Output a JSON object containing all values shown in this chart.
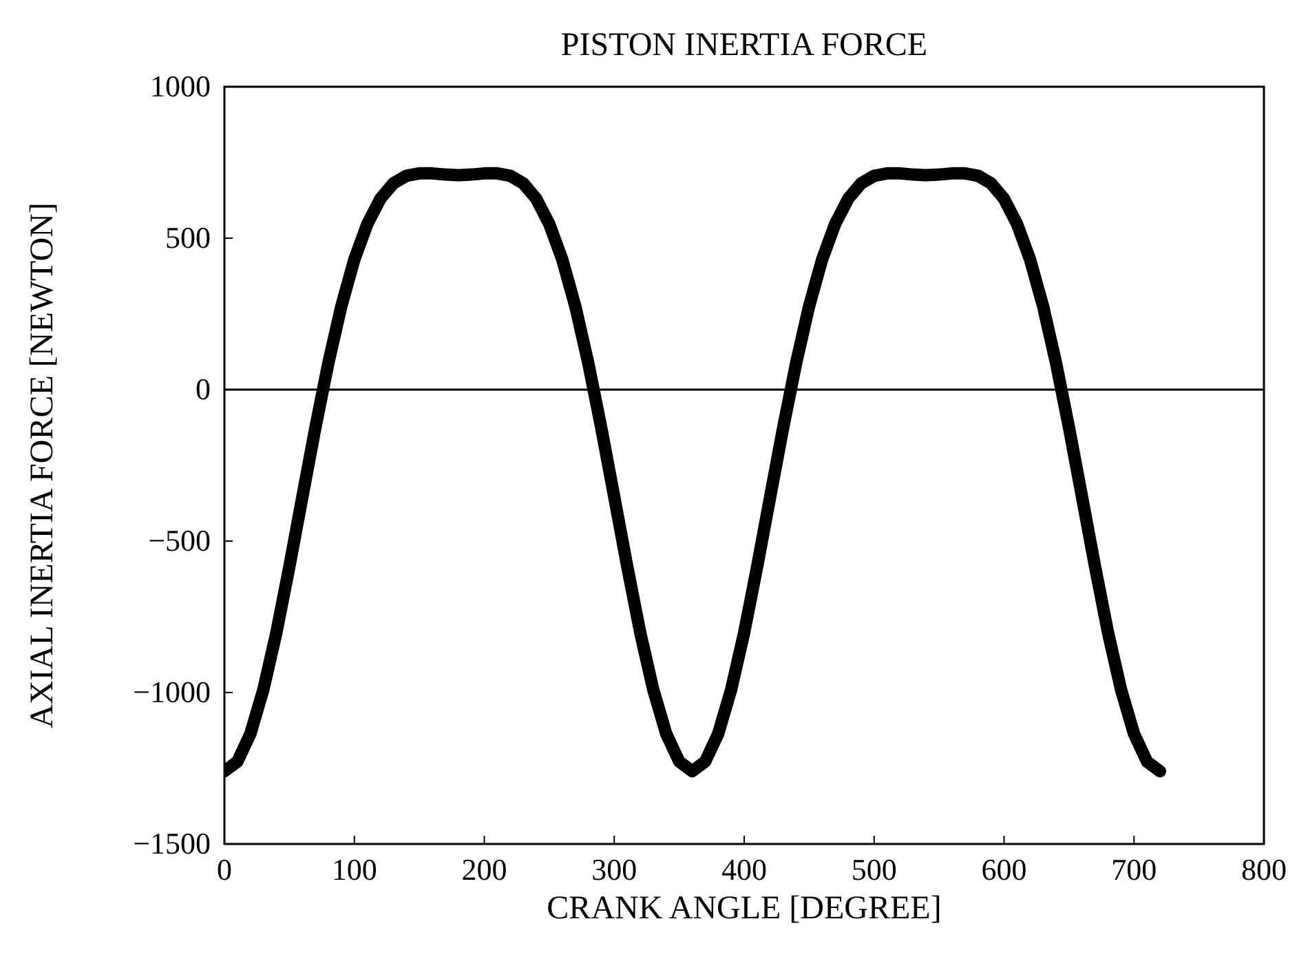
{
  "chart_data": {
    "type": "line",
    "title": "PISTON INERTIA FORCE",
    "xlabel": "CRANK ANGLE [DEGREE]",
    "ylabel": "AXIAL INERTIA FORCE [NEWTON]",
    "x": [
      0,
      10,
      20,
      30,
      40,
      50,
      60,
      70,
      80,
      90,
      100,
      110,
      120,
      130,
      140,
      150,
      160,
      170,
      180,
      190,
      200,
      210,
      220,
      230,
      240,
      250,
      260,
      270,
      280,
      290,
      300,
      310,
      320,
      330,
      340,
      350,
      360,
      370,
      380,
      390,
      400,
      410,
      420,
      430,
      440,
      450,
      460,
      470,
      480,
      490,
      500,
      510,
      520,
      530,
      540,
      550,
      560,
      570,
      580,
      590,
      600,
      610,
      620,
      630,
      640,
      650,
      660,
      670,
      680,
      690,
      700,
      710,
      720
    ],
    "series": [
      {
        "color": "#000000",
        "values": [
          -1260,
          -1228,
          -1136,
          -990,
          -802,
          -584,
          -354,
          -126,
          88,
          276,
          430,
          547,
          630,
          681,
          706,
          714,
          714,
          710,
          708,
          710,
          714,
          714,
          706,
          681,
          630,
          547,
          430,
          276,
          88,
          -126,
          -354,
          -584,
          -802,
          -990,
          -1136,
          -1228,
          -1260,
          -1228,
          -1136,
          -990,
          -802,
          -584,
          -354,
          -126,
          88,
          276,
          430,
          547,
          630,
          681,
          706,
          714,
          714,
          710,
          708,
          710,
          714,
          714,
          706,
          681,
          630,
          547,
          430,
          276,
          88,
          -126,
          -354,
          -584,
          -802,
          -990,
          -1136,
          -1228,
          -1260
        ]
      }
    ],
    "xlim": [
      0,
      800
    ],
    "xticks": [
      0,
      100,
      200,
      300,
      400,
      500,
      600,
      700,
      800
    ],
    "ylim": [
      -1500,
      1000
    ],
    "yticks": [
      -1500,
      -1000,
      -500,
      0,
      500,
      1000
    ],
    "ref_lines": [
      {
        "axis": "y",
        "value": 0,
        "color": "#000000"
      }
    ],
    "grid": false,
    "line_style": "solid"
  }
}
